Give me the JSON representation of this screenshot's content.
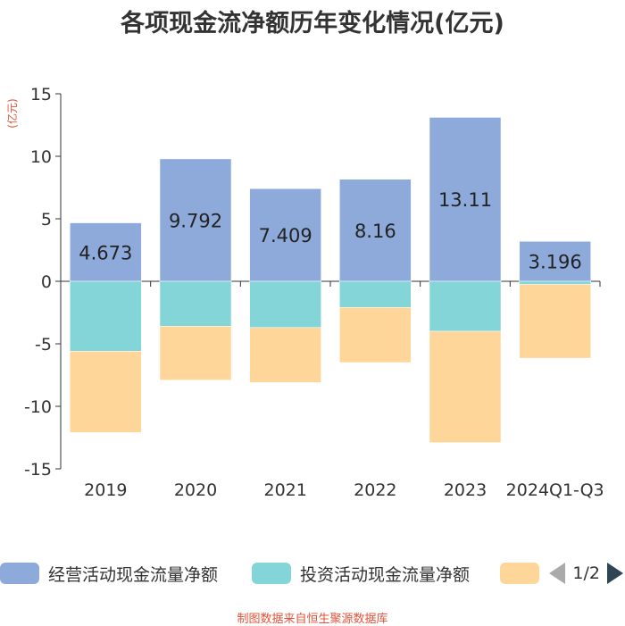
{
  "chart_data": {
    "type": "bar",
    "stacked": true,
    "title": "各项现金流净额历年变化情况(亿元)",
    "ylabel": "(亿元)",
    "xlabel": "",
    "categories": [
      "2019",
      "2020",
      "2021",
      "2022",
      "2023",
      "2024Q1-Q3"
    ],
    "ylim": [
      -15,
      15
    ],
    "yticks": [
      15,
      10,
      5,
      0,
      -5,
      -10,
      -15
    ],
    "ytick_labels": [
      "15",
      "10",
      "5",
      "0",
      "-5",
      "-10",
      "-15"
    ],
    "series": [
      {
        "name": "经营活动现金流量净额",
        "color": "#8eaadb",
        "values": [
          4.673,
          9.792,
          7.409,
          8.16,
          13.11,
          3.196
        ],
        "labels": [
          "4.673",
          "9.792",
          "7.409",
          "8.16",
          "13.11",
          "3.196"
        ]
      },
      {
        "name": "投资活动现金流量净额",
        "color": "#84d5d8",
        "values": [
          -5.6,
          -3.6,
          -3.7,
          -2.1,
          -4.0,
          -0.25
        ]
      },
      {
        "name": "",
        "color": "#ffd699",
        "values": [
          -6.5,
          -4.3,
          -4.4,
          -4.4,
          -8.9,
          -5.9
        ]
      }
    ],
    "legend_position": "bottom"
  },
  "legend": {
    "page_text": "1/2"
  },
  "footer": "制图数据来自恒生聚源数据库"
}
